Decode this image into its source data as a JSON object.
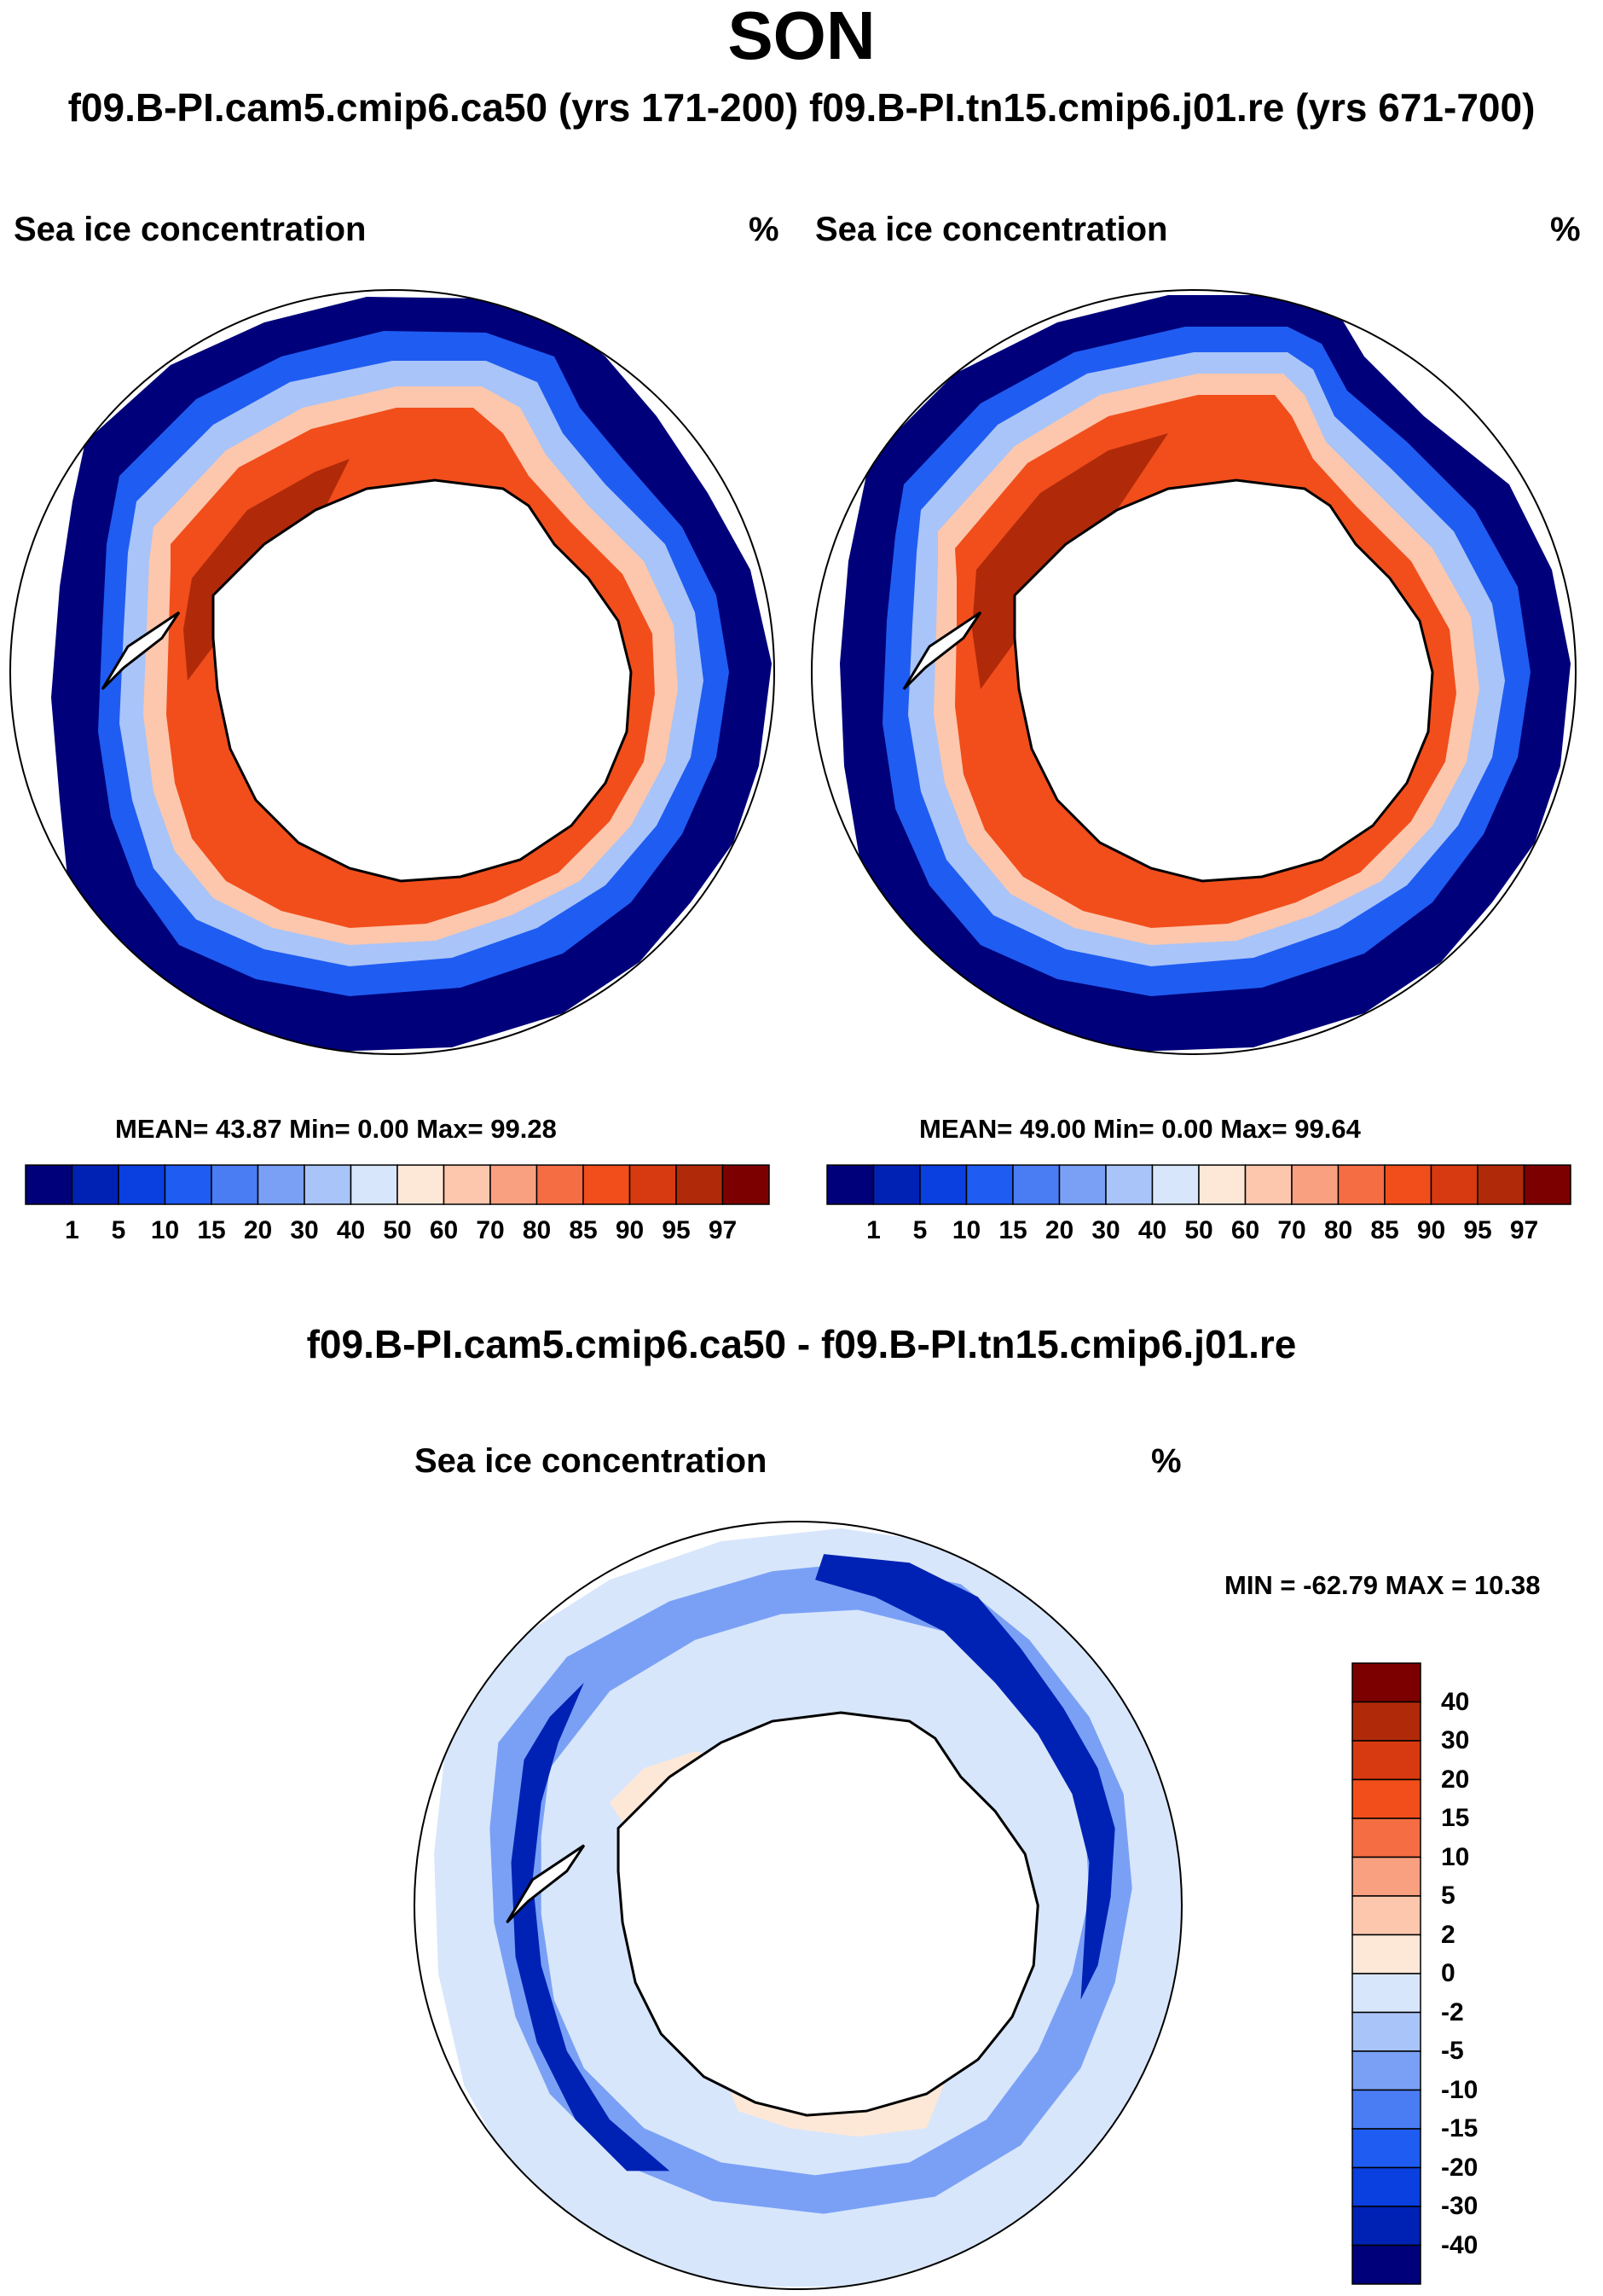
{
  "figure": {
    "title": "SON",
    "runs_title": "f09.B-PI.cam5.cmip6.ca50 (yrs 171-200)  f09.B-PI.tn15.cmip6.j01.re (yrs 671-700)",
    "diff_title": "f09.B-PI.cam5.cmip6.ca50 - f09.B-PI.tn15.cmip6.j01.re"
  },
  "panels": [
    {
      "variable": "Sea ice concentration",
      "units": "%",
      "stats_text": "MEAN=  43.87  Min=    0.00  Max=  99.28",
      "mean": 43.87,
      "min": 0.0,
      "max": 99.28
    },
    {
      "variable": "Sea ice concentration",
      "units": "%",
      "stats_text": "MEAN=  49.00  Min=    0.00  Max=  99.64",
      "mean": 49.0,
      "min": 0.0,
      "max": 99.64
    }
  ],
  "diff_panel": {
    "variable": "Sea ice concentration",
    "units": "%",
    "stats_text": "MIN = -62.79 MAX =  10.38",
    "min": -62.79,
    "max": 10.38
  },
  "colorbar": {
    "levels": [
      "1",
      "5",
      "10",
      "15",
      "20",
      "30",
      "40",
      "50",
      "60",
      "70",
      "80",
      "85",
      "90",
      "95",
      "97"
    ],
    "colors": [
      "#00007a",
      "#0022b4",
      "#0a3fe0",
      "#1f5cf2",
      "#4a7cf4",
      "#7aa0f6",
      "#a9c4f8",
      "#d7e6fb",
      "#fde8d8",
      "#fcc7ad",
      "#f9a080",
      "#f46d43",
      "#f14e1c",
      "#d73a10",
      "#b02a0a",
      "#7d0000"
    ]
  },
  "diff_colorbar": {
    "levels": [
      "40",
      "30",
      "20",
      "15",
      "10",
      "5",
      "2",
      "0",
      "-2",
      "-5",
      "-10",
      "-15",
      "-20",
      "-30",
      "-40"
    ],
    "colors": [
      "#7d0000",
      "#b02a0a",
      "#d73a10",
      "#f14e1c",
      "#f46d43",
      "#f9a080",
      "#fcc7ad",
      "#fde8d8",
      "#d7e6fb",
      "#a9c4f8",
      "#7aa0f6",
      "#4a7cf4",
      "#1f5cf2",
      "#0a3fe0",
      "#0022b4",
      "#00007a"
    ]
  }
}
